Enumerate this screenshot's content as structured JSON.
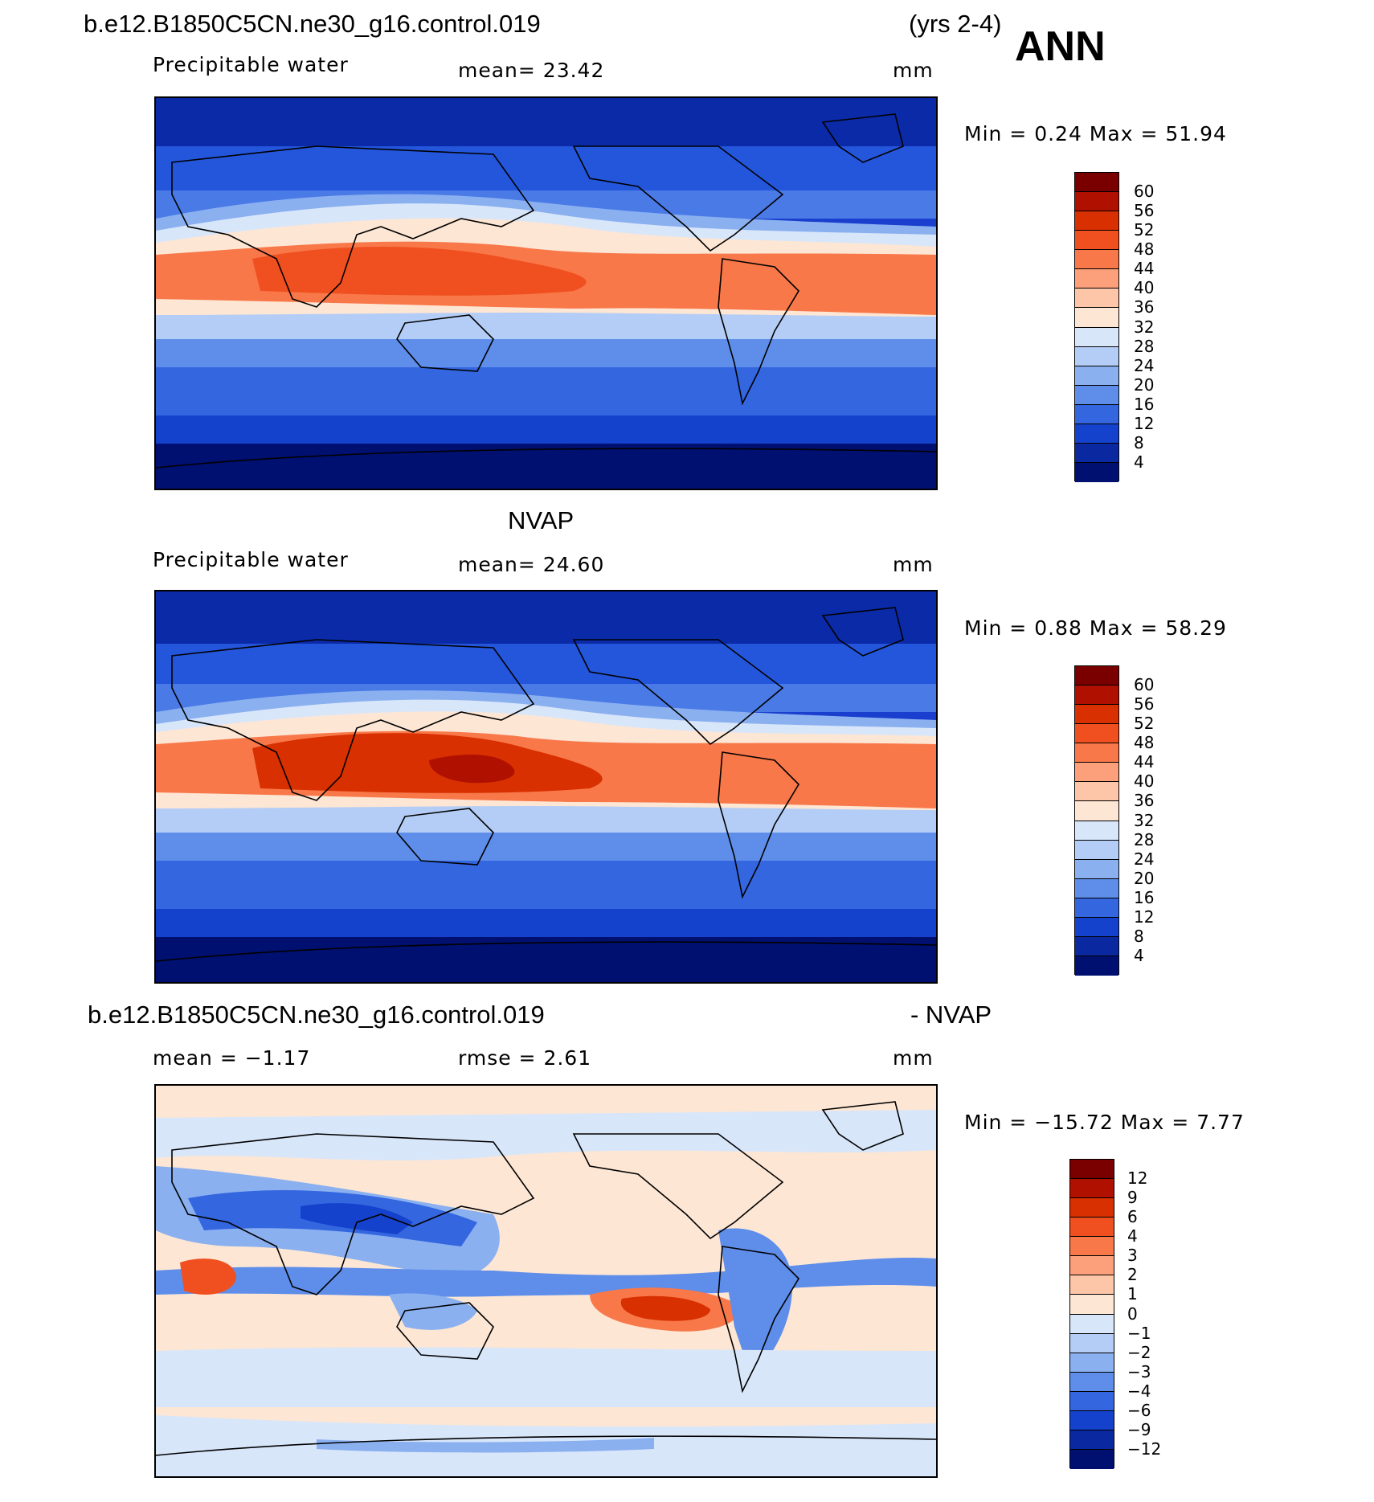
{
  "header": {
    "case_name": "b.e12.B1850C5CN.ne30_g16.control.019",
    "years": "(yrs 2-4)",
    "season": "ANN"
  },
  "chart_data": [
    {
      "type": "heatmap",
      "left_label": "Precipitable water",
      "center_label": "mean=   23.42",
      "units": "mm",
      "minmax_label": "Min =    0.24  Max =   51.94",
      "colorbar": {
        "ticks": [
          "60",
          "56",
          "52",
          "48",
          "44",
          "40",
          "36",
          "32",
          "28",
          "24",
          "20",
          "16",
          "12",
          "8",
          "4"
        ],
        "colors": [
          "#7a0000",
          "#b01000",
          "#d83000",
          "#f05020",
          "#f8784a",
          "#fca07c",
          "#fec6a8",
          "#fde6d4",
          "#d8e6fa",
          "#b4cdf6",
          "#8ab0f0",
          "#5e8eea",
          "#3466e0",
          "#1442cc",
          "#0a28a0",
          "#001070"
        ]
      }
    },
    {
      "type": "heatmap",
      "title": "NVAP",
      "left_label": "Precipitable water",
      "center_label": "mean=   24.60",
      "units": "mm",
      "minmax_label": "Min =    0.88  Max =   58.29",
      "colorbar": {
        "ticks": [
          "60",
          "56",
          "52",
          "48",
          "44",
          "40",
          "36",
          "32",
          "28",
          "24",
          "20",
          "16",
          "12",
          "8",
          "4"
        ],
        "colors": [
          "#7a0000",
          "#b01000",
          "#d83000",
          "#f05020",
          "#f8784a",
          "#fca07c",
          "#fec6a8",
          "#fde6d4",
          "#d8e6fa",
          "#b4cdf6",
          "#8ab0f0",
          "#5e8eea",
          "#3466e0",
          "#1442cc",
          "#0a28a0",
          "#001070"
        ]
      }
    },
    {
      "type": "heatmap",
      "title_left": "b.e12.B1850C5CN.ne30_g16.control.019",
      "title_right": "- NVAP",
      "left_label": "mean =   −1.17",
      "center_label": "rmse =     2.61",
      "units": "mm",
      "minmax_label": "Min = −15.72  Max =     7.77",
      "colorbar": {
        "ticks": [
          "12",
          "9",
          "6",
          "4",
          "3",
          "2",
          "1",
          "0",
          "−1",
          "−2",
          "−3",
          "−4",
          "−6",
          "−9",
          "−12"
        ],
        "colors": [
          "#7a0000",
          "#b01000",
          "#d83000",
          "#f05020",
          "#f8784a",
          "#fca07c",
          "#fec6a8",
          "#fde6d4",
          "#d8e6fa",
          "#b4cdf6",
          "#8ab0f0",
          "#5e8eea",
          "#3466e0",
          "#1442cc",
          "#0a28a0",
          "#001070"
        ]
      }
    }
  ]
}
